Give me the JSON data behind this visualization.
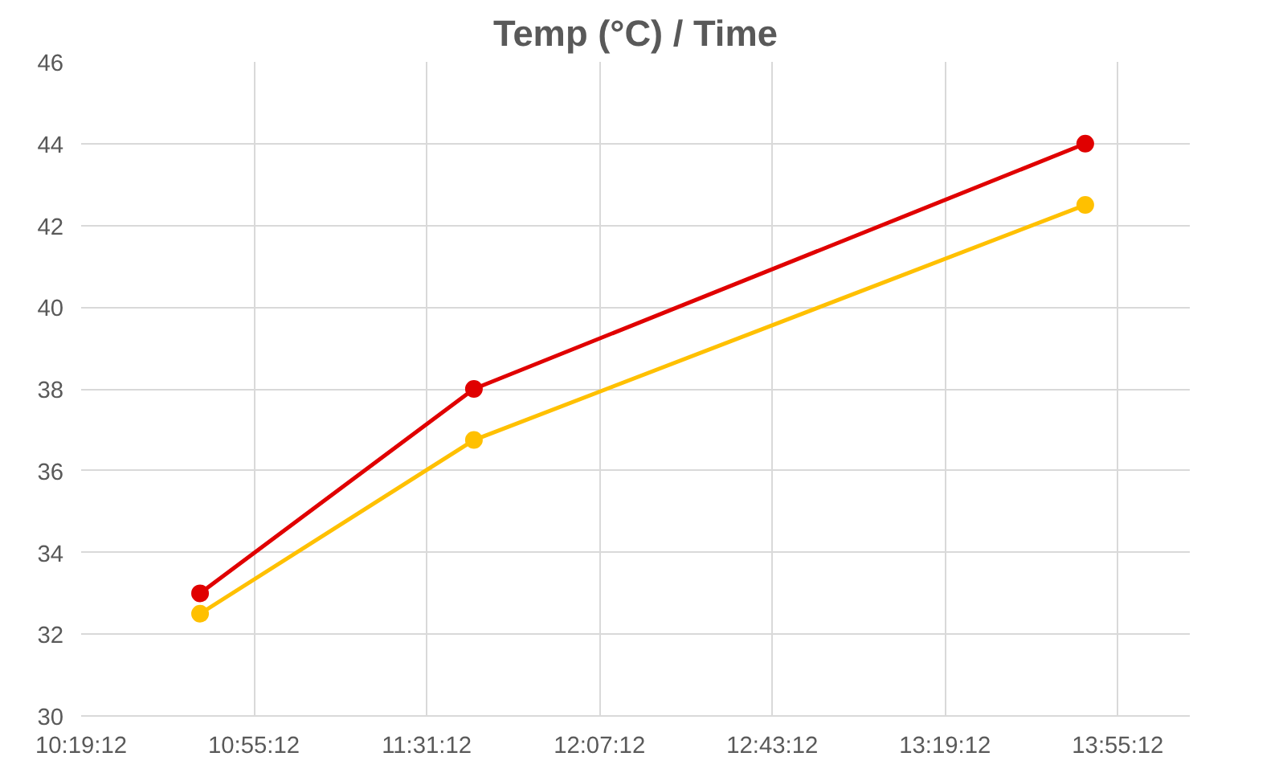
{
  "chart_data": {
    "type": "line",
    "title": "Temp (°C) / Time",
    "x": [
      10.733,
      11.684,
      13.807
    ],
    "series": [
      {
        "color": "#e00000",
        "values": [
          33,
          38,
          44
        ]
      },
      {
        "color": "#ffc000",
        "values": [
          32.5,
          36.75,
          42.5
        ]
      }
    ],
    "xlim": [
      10.32,
      14.17
    ],
    "xticks": [
      {
        "value": 10.32,
        "label": "10:19:12"
      },
      {
        "value": 10.92,
        "label": "10:55:12"
      },
      {
        "value": 11.52,
        "label": "11:31:12"
      },
      {
        "value": 12.12,
        "label": "12:07:12"
      },
      {
        "value": 12.72,
        "label": "12:43:12"
      },
      {
        "value": 13.32,
        "label": "13:19:12"
      },
      {
        "value": 13.92,
        "label": "13:55:12"
      }
    ],
    "ylim": [
      30,
      46
    ],
    "yticks": [
      30,
      32,
      34,
      36,
      38,
      40,
      42,
      44,
      46
    ],
    "grid": true,
    "marker": "circle",
    "line_style": "solid"
  }
}
